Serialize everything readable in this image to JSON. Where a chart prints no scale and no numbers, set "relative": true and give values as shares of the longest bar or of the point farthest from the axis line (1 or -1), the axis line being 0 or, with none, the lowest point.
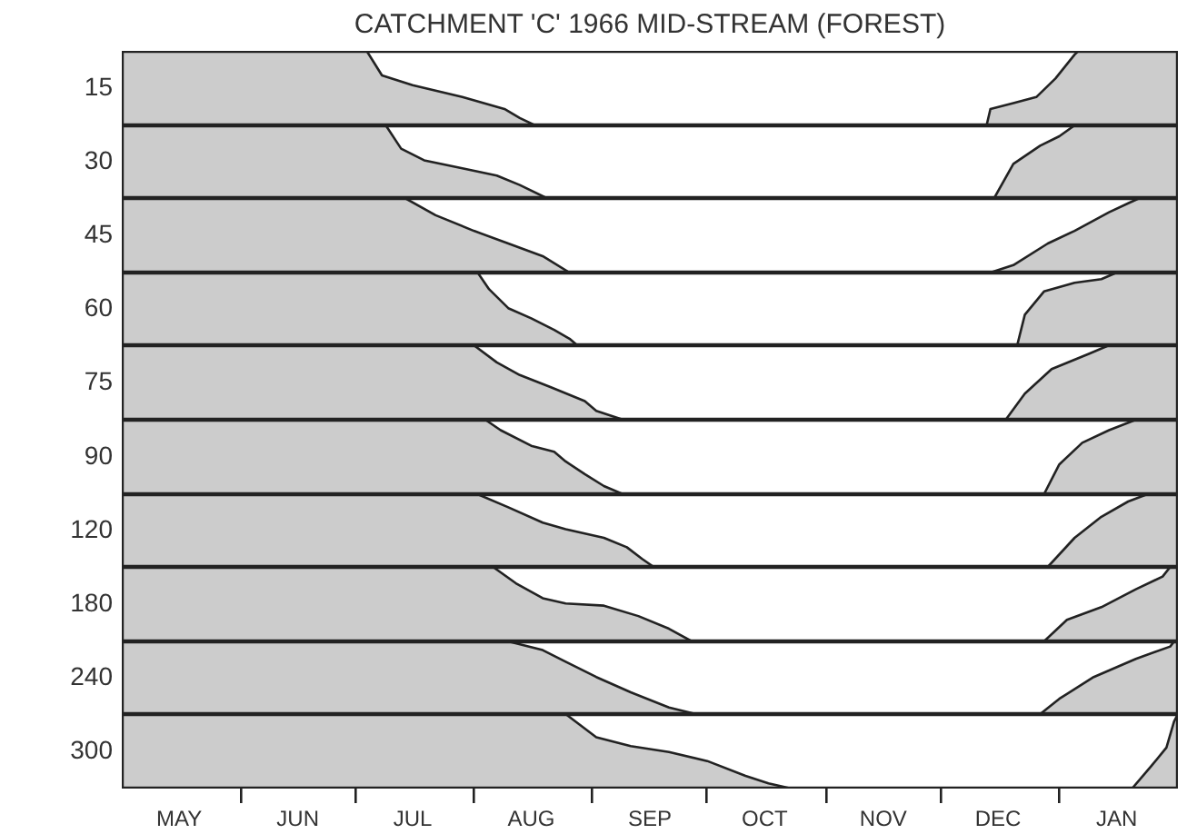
{
  "chart_data": [
    {
      "type": "area",
      "relative": true,
      "title": "CATCHMENT 'C' 1966 MID-STREAM (FOREST)",
      "ylabel": "15",
      "color": "#cccccc",
      "xlim": [
        "1966-05-01",
        "1967-02-01"
      ],
      "tick_labels": false,
      "x": [
        "1966-05-01",
        "1966-07-04",
        "1966-07-08",
        "1966-07-16",
        "1966-07-29",
        "1966-08-09",
        "1966-08-13",
        "1966-08-17",
        "1966-12-13",
        "1966-12-14",
        "1966-12-20",
        "1966-12-26",
        "1966-12-31",
        "1967-01-05",
        "1967-01-06",
        "1967-02-01"
      ],
      "values": [
        1,
        1,
        0.67,
        0.54,
        0.38,
        0.22,
        0.1,
        0,
        0,
        0.22,
        0.3,
        0.38,
        0.63,
        0.95,
        1,
        1
      ]
    },
    {
      "type": "area",
      "relative": true,
      "ylabel": "30",
      "color": "#cccccc",
      "xlim": [
        "1966-05-01",
        "1967-02-01"
      ],
      "tick_labels": false,
      "x": [
        "1966-05-01",
        "1966-07-09",
        "1966-07-13",
        "1966-07-19",
        "1966-07-29",
        "1966-08-07",
        "1966-08-13",
        "1966-08-20",
        "1966-12-15",
        "1966-12-20",
        "1966-12-27",
        "1967-01-01",
        "1967-01-05",
        "1967-02-01"
      ],
      "values": [
        1,
        1,
        0.68,
        0.52,
        0.41,
        0.31,
        0.18,
        0,
        0,
        0.47,
        0.72,
        0.85,
        1,
        1
      ]
    },
    {
      "type": "area",
      "relative": true,
      "ylabel": "45",
      "color": "#cccccc",
      "xlim": [
        "1966-05-01",
        "1967-02-01"
      ],
      "tick_labels": false,
      "x": [
        "1966-05-01",
        "1966-07-14",
        "1966-07-22",
        "1966-08-01",
        "1966-08-10",
        "1966-08-19",
        "1966-08-26",
        "1966-12-14",
        "1966-12-20",
        "1966-12-29",
        "1967-01-05",
        "1967-01-14",
        "1967-01-19",
        "1967-01-22",
        "1967-02-01"
      ],
      "values": [
        1,
        1,
        0.77,
        0.56,
        0.39,
        0.22,
        0,
        0,
        0.1,
        0.39,
        0.56,
        0.81,
        0.93,
        1,
        1
      ]
    },
    {
      "type": "area",
      "relative": true,
      "ylabel": "60",
      "color": "#cccccc",
      "xlim": [
        "1966-05-01",
        "1967-02-01"
      ],
      "tick_labels": false,
      "x": [
        "1966-05-01",
        "1966-08-02",
        "1966-08-05",
        "1966-08-10",
        "1966-08-16",
        "1966-08-22",
        "1966-08-26",
        "1966-08-28",
        "1966-12-21",
        "1966-12-23",
        "1966-12-28",
        "1967-01-05",
        "1967-01-12",
        "1967-01-16",
        "1967-02-01"
      ],
      "values": [
        1,
        1,
        0.77,
        0.51,
        0.37,
        0.21,
        0.09,
        0,
        0,
        0.42,
        0.74,
        0.86,
        0.91,
        1,
        1
      ]
    },
    {
      "type": "area",
      "relative": true,
      "ylabel": "75",
      "color": "#cccccc",
      "xlim": [
        "1966-05-01",
        "1967-02-01"
      ],
      "tick_labels": false,
      "x": [
        "1966-05-01",
        "1966-08-01",
        "1966-08-07",
        "1966-08-13",
        "1966-08-21",
        "1966-08-30",
        "1966-09-02",
        "1966-09-09",
        "1966-12-18",
        "1966-12-23",
        "1966-12-30",
        "1967-01-09",
        "1967-01-14",
        "1967-02-01"
      ],
      "values": [
        1,
        1,
        0.77,
        0.6,
        0.44,
        0.25,
        0.12,
        0,
        0,
        0.35,
        0.68,
        0.89,
        1,
        1
      ]
    },
    {
      "type": "area",
      "relative": true,
      "ylabel": "90",
      "color": "#cccccc",
      "xlim": [
        "1966-05-01",
        "1967-02-01"
      ],
      "tick_labels": false,
      "x": [
        "1966-05-01",
        "1966-08-04",
        "1966-08-08",
        "1966-08-16",
        "1966-08-22",
        "1966-08-25",
        "1966-08-30",
        "1966-09-04",
        "1966-09-09",
        "1966-12-28",
        "1967-01-01",
        "1967-01-07",
        "1967-01-14",
        "1967-01-21",
        "1967-02-01"
      ],
      "values": [
        1,
        1,
        0.86,
        0.65,
        0.57,
        0.44,
        0.27,
        0.11,
        0,
        0,
        0.4,
        0.69,
        0.86,
        1,
        1
      ]
    },
    {
      "type": "area",
      "relative": true,
      "ylabel": "120",
      "color": "#cccccc",
      "xlim": [
        "1966-05-01",
        "1967-02-01"
      ],
      "tick_labels": false,
      "x": [
        "1966-05-01",
        "1966-08-02",
        "1966-08-10",
        "1966-08-19",
        "1966-08-25",
        "1966-09-04",
        "1966-09-10",
        "1966-09-14",
        "1966-09-17",
        "1966-12-29",
        "1967-01-05",
        "1967-01-12",
        "1967-01-19",
        "1967-01-24",
        "1967-02-01"
      ],
      "values": [
        1,
        1,
        0.82,
        0.61,
        0.52,
        0.4,
        0.27,
        0.11,
        0,
        0,
        0.4,
        0.69,
        0.9,
        1,
        1
      ]
    },
    {
      "type": "area",
      "relative": true,
      "ylabel": "180",
      "color": "#cccccc",
      "xlim": [
        "1966-05-01",
        "1967-02-01"
      ],
      "tick_labels": false,
      "x": [
        "1966-05-01",
        "1966-08-06",
        "1966-08-12",
        "1966-08-19",
        "1966-08-25",
        "1966-09-04",
        "1966-09-13",
        "1966-09-21",
        "1966-09-27",
        "1966-12-28",
        "1967-01-03",
        "1967-01-12",
        "1967-01-21",
        "1967-01-28",
        "1967-01-30",
        "1967-02-01"
      ],
      "values": [
        1,
        1,
        0.78,
        0.58,
        0.51,
        0.48,
        0.34,
        0.17,
        0,
        0,
        0.29,
        0.46,
        0.7,
        0.87,
        1,
        1
      ]
    },
    {
      "type": "area",
      "relative": true,
      "ylabel": "240",
      "color": "#cccccc",
      "xlim": [
        "1966-05-01",
        "1967-02-01"
      ],
      "tick_labels": false,
      "x": [
        "1966-05-01",
        "1966-08-10",
        "1966-08-19",
        "1966-08-25",
        "1966-09-02",
        "1966-09-11",
        "1966-09-21",
        "1966-09-28",
        "1966-12-27",
        "1967-01-01",
        "1967-01-10",
        "1967-01-21",
        "1967-01-30",
        "1967-01-31",
        "1967-02-01"
      ],
      "values": [
        1,
        1,
        0.88,
        0.72,
        0.51,
        0.3,
        0.09,
        0,
        0,
        0.21,
        0.51,
        0.76,
        0.93,
        1,
        1
      ]
    },
    {
      "type": "area",
      "relative": true,
      "ylabel": "300",
      "color": "#cccccc",
      "xlim": [
        "1966-05-01",
        "1967-02-01"
      ],
      "tick_labels": "x",
      "xticks": [
        {
          "value": "1966-05-16",
          "label": "MAY"
        },
        {
          "value": "1966-06-01",
          "label": null
        },
        {
          "value": "1966-06-16",
          "label": "JUN"
        },
        {
          "value": "1966-07-01",
          "label": null
        },
        {
          "value": "1966-07-16",
          "label": "JUL"
        },
        {
          "value": "1966-08-01",
          "label": null
        },
        {
          "value": "1966-08-16",
          "label": "AUG"
        },
        {
          "value": "1966-09-01",
          "label": null
        },
        {
          "value": "1966-09-16",
          "label": "SEP"
        },
        {
          "value": "1966-10-01",
          "label": null
        },
        {
          "value": "1966-10-16",
          "label": "OCT"
        },
        {
          "value": "1966-11-01",
          "label": null
        },
        {
          "value": "1966-11-16",
          "label": "NOV"
        },
        {
          "value": "1966-12-01",
          "label": null
        },
        {
          "value": "1966-12-16",
          "label": "DEC"
        },
        {
          "value": "1967-01-01",
          "label": null
        },
        {
          "value": "1967-01-16",
          "label": "JAN"
        }
      ],
      "x": [
        "1966-05-01",
        "1966-08-25",
        "1966-09-02",
        "1966-09-11",
        "1966-09-21",
        "1966-10-01",
        "1966-10-11",
        "1966-10-17",
        "1966-10-23",
        "1967-01-20",
        "1967-01-25",
        "1967-01-29",
        "1967-01-31",
        "1967-02-01"
      ],
      "values": [
        1,
        1,
        0.69,
        0.57,
        0.49,
        0.37,
        0.17,
        0.07,
        0,
        0,
        0.3,
        0.55,
        0.9,
        1
      ]
    }
  ]
}
